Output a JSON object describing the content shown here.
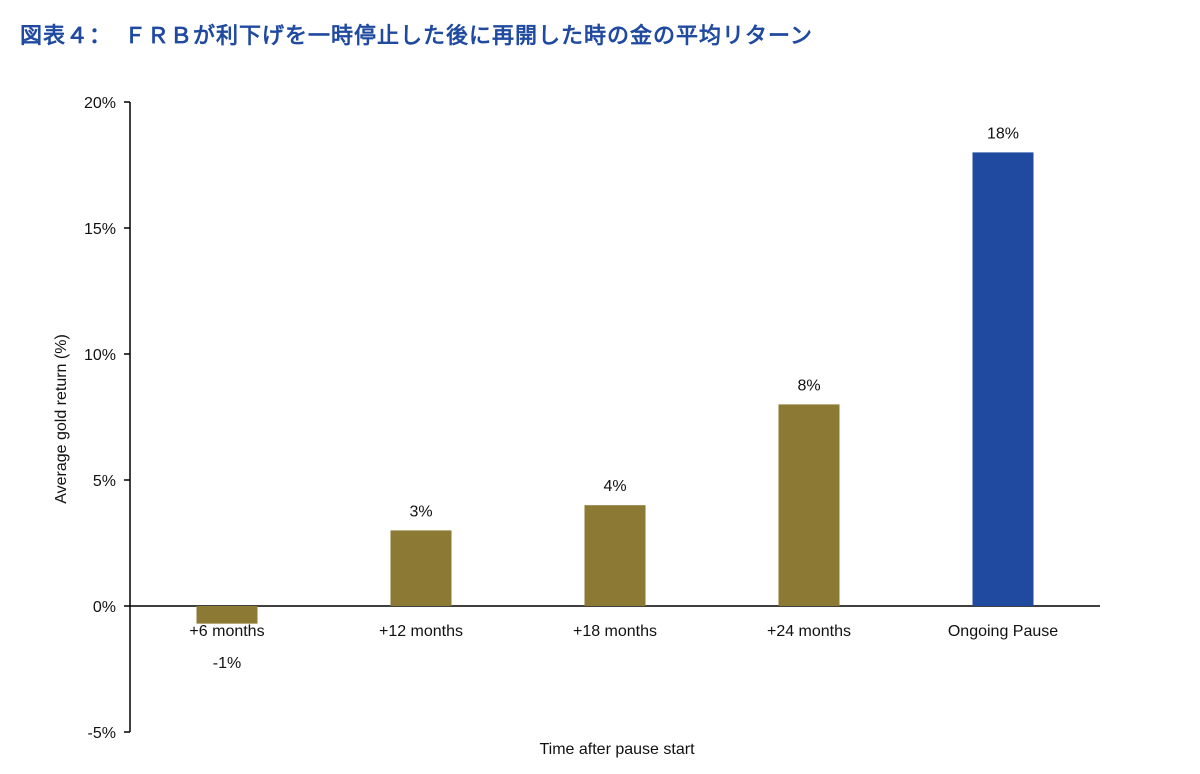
{
  "title": "図表４：　ＦＲＢが利下げを一時停止した後に再開した時の金の平均リターン",
  "chart_data": {
    "type": "bar",
    "title": "図表４：　ＦＲＢが利下げを一時停止した後に再開した時の金の平均リターン",
    "xlabel": "Time after pause start",
    "ylabel": "Average gold return (%)",
    "categories": [
      "+6 months",
      "+12 months",
      "+18 months",
      "+24 months",
      "Ongoing Pause"
    ],
    "values": [
      -0.7,
      3,
      4,
      8,
      18
    ],
    "data_labels": [
      "-1%",
      "3%",
      "4%",
      "8%",
      "18%"
    ],
    "ylim": [
      -5,
      20
    ],
    "yticks": [
      -5,
      0,
      5,
      10,
      15,
      20
    ],
    "ytick_labels": [
      "-5%",
      "0%",
      "5%",
      "10%",
      "15%",
      "20%"
    ],
    "grid": false,
    "colors": {
      "default_bar": "#8c7a34",
      "highlight_bar": "#1f4aa0",
      "title": "#1f4aa0"
    },
    "highlight_category": "Ongoing Pause"
  }
}
